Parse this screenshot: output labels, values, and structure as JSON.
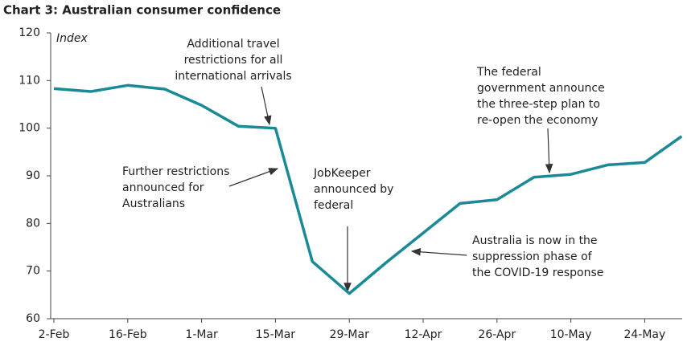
{
  "chart_data": {
    "type": "line",
    "title": "Chart 3:  Australian consumer confidence",
    "y_label": "Index",
    "categories": [
      "2-Feb",
      null,
      "16-Feb",
      null,
      "1-Mar",
      null,
      "15-Mar",
      null,
      "29-Mar",
      null,
      "12-Apr",
      null,
      "26-Apr",
      null,
      "10-May",
      null,
      "24-May",
      null
    ],
    "values": [
      108.3,
      107.7,
      109.0,
      108.2,
      104.8,
      100.4,
      100.0,
      72.0,
      65.3,
      71.8,
      78.0,
      84.2,
      85.0,
      89.7,
      90.3,
      92.3,
      92.8,
      98.3
    ],
    "color": "#1a8a96",
    "ylim": [
      60,
      120
    ],
    "yticks": [
      60,
      70,
      80,
      90,
      100,
      110,
      120
    ],
    "grid": false,
    "annotations": [
      {
        "lines": [
          "Additional travel",
          "restrictions for all",
          "international arrivals"
        ]
      },
      {
        "lines": [
          "Further restrictions",
          "announced for",
          "Australians"
        ]
      },
      {
        "lines": [
          "JobKeeper",
          "announced by",
          "federal"
        ]
      },
      {
        "lines": [
          "The federal",
          "government announce",
          "the three-step plan to",
          "re-open the economy"
        ]
      },
      {
        "lines": [
          "Australia is now in the",
          "suppression phase of",
          "the COVID-19 response"
        ]
      }
    ]
  }
}
